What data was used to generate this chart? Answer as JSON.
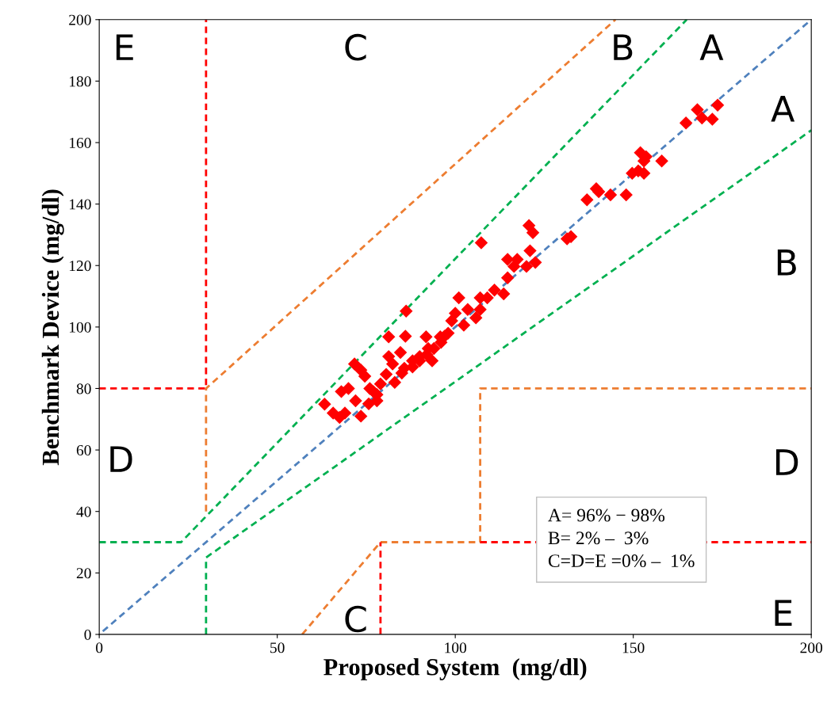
{
  "chart_data": {
    "type": "scatter",
    "xlabel": "Proposed System  (mg/dl)",
    "ylabel": "Benchmark Device (mg/dl)",
    "xlim": [
      0,
      200
    ],
    "ylim": [
      0,
      200
    ],
    "xticks": [
      0,
      50,
      100,
      150,
      200
    ],
    "yticks": [
      0,
      20,
      40,
      60,
      80,
      100,
      120,
      140,
      160,
      180,
      200
    ],
    "grid": false,
    "legend": false,
    "marker": "diamond",
    "series": [
      {
        "color": "#ff0000",
        "x": [
          63.3,
          65.7,
          67.5,
          69,
          68,
          70,
          71.7,
          73.5,
          74.6,
          72,
          73.5,
          75.7,
          77,
          78,
          79,
          80.6,
          81.3,
          86,
          91.8,
          86.2,
          81.3,
          82.4,
          84.6,
          85.7,
          88,
          90,
          92.4,
          93.5,
          95.8,
          98,
          99,
          100,
          102.4,
          103.5,
          101,
          105.8,
          107,
          107,
          107.3,
          109,
          111,
          113.6,
          114.7,
          114.7,
          116.5,
          117.4,
          120,
          121,
          120.7,
          121.8,
          122.5,
          131.4,
          132.5,
          137,
          139.6,
          140.3,
          143.6,
          148,
          149.7,
          151.4,
          153,
          152,
          153.6,
          153,
          158,
          164.8,
          168,
          169.3,
          172.2,
          173.7,
          85,
          88,
          90,
          92,
          94,
          96,
          97,
          83,
          78,
          76
        ],
        "values": [
          74.9,
          72,
          70.6,
          72,
          79,
          80,
          88,
          86,
          84,
          76,
          71,
          75,
          79,
          76,
          81.5,
          84.6,
          96.8,
          97,
          96.8,
          105.2,
          90.4,
          88,
          91.7,
          86.6,
          89,
          90.4,
          93,
          89,
          96.8,
          98,
          102,
          104.5,
          100.6,
          105.7,
          109.5,
          103,
          105.7,
          109.5,
          127.4,
          109.5,
          112,
          110.8,
          116,
          122,
          119.7,
          122,
          119.7,
          124.8,
          133,
          130.7,
          121,
          128.7,
          129.4,
          141.4,
          145,
          144,
          143,
          143,
          150,
          150.8,
          150,
          156.7,
          155.4,
          154,
          154,
          166.4,
          170.7,
          168,
          167.6,
          172.2,
          85,
          87,
          89,
          91,
          93,
          95,
          97,
          82,
          78,
          80
        ]
      },
      {
        "type": "line",
        "color": "#4f81bd",
        "marker": "none",
        "line_style": "dashed",
        "x": [
          1,
          200
        ],
        "values": [
          1,
          200
        ]
      },
      {
        "type": "line",
        "color": "#00b050",
        "marker": "none",
        "line_style": "dashed",
        "x": [
          0,
          23,
          165
        ],
        "values": [
          30,
          30,
          200
        ]
      },
      {
        "type": "line",
        "color": "#00b050",
        "marker": "none",
        "line_style": "dashed",
        "x": [
          30,
          30,
          200
        ],
        "values": [
          0,
          25,
          164
        ]
      },
      {
        "type": "line",
        "color": "#ed7d31",
        "marker": "none",
        "line_style": "dashed",
        "x": [
          30,
          30,
          145
        ],
        "values": [
          40,
          80,
          200
        ]
      },
      {
        "type": "line",
        "color": "#ff0000",
        "marker": "none",
        "line_style": "dashed",
        "x": [
          0,
          30,
          30
        ],
        "values": [
          80,
          80,
          200
        ]
      },
      {
        "type": "line",
        "color": "#ed7d31",
        "marker": "none",
        "line_style": "dashed",
        "x": [
          57,
          79,
          107,
          107,
          200
        ],
        "values": [
          0,
          30,
          30,
          80,
          80
        ]
      },
      {
        "type": "line",
        "color": "#ff0000",
        "marker": "none",
        "line_style": "dashed",
        "x": [
          79,
          79
        ],
        "values": [
          0,
          30
        ]
      },
      {
        "type": "line",
        "color": "#ff0000",
        "marker": "none",
        "line_style": "dashed",
        "x": [
          107,
          200
        ],
        "values": [
          30,
          30
        ]
      }
    ],
    "annotations": [
      "E",
      "C",
      "B",
      "A",
      "A",
      "B",
      "D",
      "D",
      "E",
      "C",
      "A= 96% − 98%\nB= 2% –  3%\nC=D=E =0% –  1%"
    ]
  }
}
